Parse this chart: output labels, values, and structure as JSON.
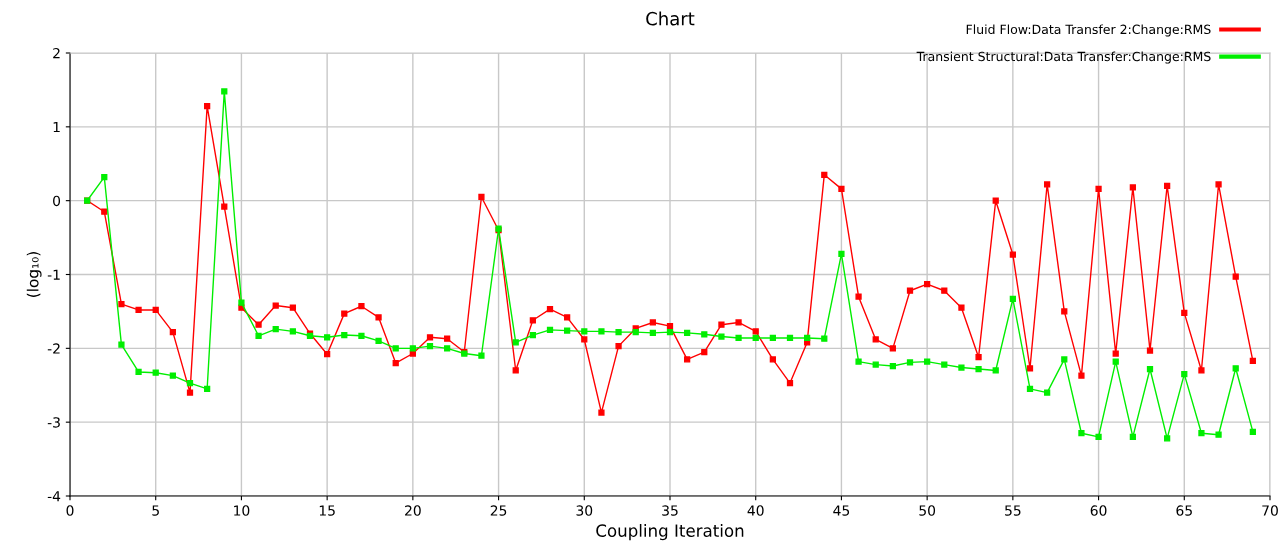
{
  "chart_data": {
    "type": "line",
    "title": "Chart",
    "xlabel": "Coupling Iteration",
    "ylabel": "(log₁₀)",
    "x": [
      1,
      2,
      3,
      4,
      5,
      6,
      7,
      8,
      9,
      10,
      11,
      12,
      13,
      14,
      15,
      16,
      17,
      18,
      19,
      20,
      21,
      22,
      23,
      24,
      25,
      26,
      27,
      28,
      29,
      30,
      31,
      32,
      33,
      34,
      35,
      36,
      37,
      38,
      39,
      40,
      41,
      42,
      43,
      44,
      45,
      46,
      47,
      48,
      49,
      50,
      51,
      52,
      53,
      54,
      55,
      56,
      57,
      58,
      59,
      60,
      61,
      62,
      63,
      64,
      65,
      66,
      67,
      68,
      69
    ],
    "series": [
      {
        "name": "Fluid Flow:Data Transfer 2:Change:RMS",
        "color": "#ff0000",
        "values": [
          0,
          -0.15,
          -1.4,
          -1.48,
          -1.48,
          -1.78,
          -2.6,
          1.28,
          -0.08,
          -1.45,
          -1.68,
          -1.42,
          -1.45,
          -1.8,
          -2.08,
          -1.53,
          -1.43,
          -1.58,
          -2.2,
          -2.07,
          -1.85,
          -1.87,
          -2.05,
          0.05,
          -0.4,
          -2.3,
          -1.62,
          -1.47,
          -1.58,
          -1.88,
          -2.87,
          -1.97,
          -1.73,
          -1.65,
          -1.7,
          -2.15,
          -2.05,
          -1.68,
          -1.65,
          -1.77,
          -2.15,
          -2.47,
          -1.92,
          0.35,
          0.16,
          -1.3,
          -1.88,
          -2.0,
          -1.22,
          -1.13,
          -1.22,
          -1.45,
          -2.12,
          0.0,
          -0.73,
          -2.27,
          0.22,
          -1.5,
          -2.37,
          0.16,
          -2.07,
          0.18,
          -2.03,
          0.2,
          -1.52,
          -2.3,
          0.22,
          -1.03,
          -2.17
        ]
      },
      {
        "name": "Transient Structural:Data Transfer:Change:RMS",
        "color": "#00ee00",
        "values": [
          0,
          0.32,
          -1.95,
          -2.32,
          -2.33,
          -2.37,
          -2.47,
          -2.55,
          1.48,
          -1.38,
          -1.83,
          -1.74,
          -1.77,
          -1.83,
          -1.85,
          -1.82,
          -1.83,
          -1.9,
          -2.0,
          -2.0,
          -1.97,
          -2.0,
          -2.07,
          -2.1,
          -0.38,
          -1.92,
          -1.82,
          -1.75,
          -1.76,
          -1.77,
          -1.77,
          -1.78,
          -1.78,
          -1.79,
          -1.78,
          -1.79,
          -1.81,
          -1.84,
          -1.86,
          -1.86,
          -1.86,
          -1.86,
          -1.86,
          -1.87,
          -0.72,
          -2.18,
          -2.22,
          -2.24,
          -2.19,
          -2.18,
          -2.22,
          -2.26,
          -2.28,
          -2.3,
          -1.33,
          -2.55,
          -2.6,
          -2.15,
          -3.15,
          -3.2,
          -2.18,
          -3.2,
          -2.28,
          -3.22,
          -2.35,
          -3.15,
          -3.17,
          -2.27,
          -3.13
        ]
      }
    ],
    "xlim": [
      0,
      70
    ],
    "xticks": [
      0,
      5,
      10,
      15,
      20,
      25,
      30,
      35,
      40,
      45,
      50,
      55,
      60,
      65,
      70
    ],
    "ylim": [
      -4,
      2
    ],
    "yticks": [
      -4,
      -3,
      -2,
      -1,
      0,
      1,
      2
    ],
    "grid": true,
    "legend": "top right",
    "marker": "square",
    "line_style": "solid"
  }
}
